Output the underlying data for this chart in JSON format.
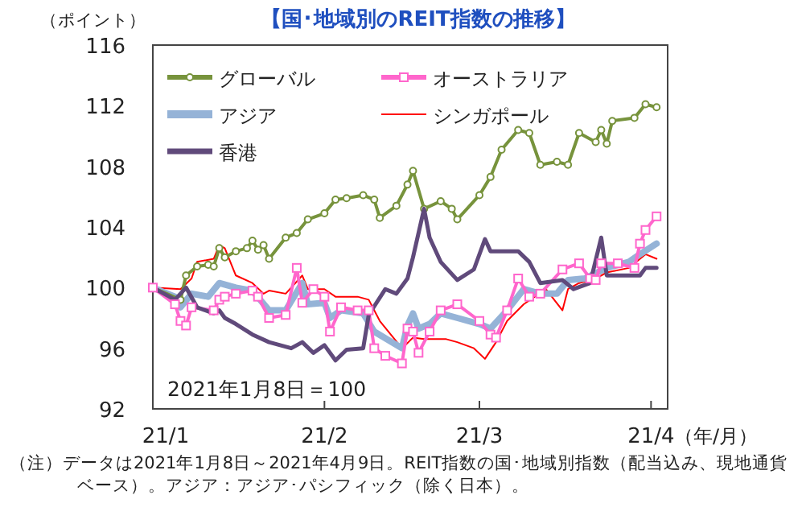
{
  "chart_data": {
    "type": "line",
    "title": "【国･地域別のREIT指数の推移】",
    "ylabel": "（ポイント）",
    "xlabel": "（年/月）",
    "xlim": [
      "2021-01-01",
      "2021-04-04"
    ],
    "xticks": [
      {
        "value": "2021-01-01",
        "label": "21/1"
      },
      {
        "value": "2021-02-01",
        "label": "21/2"
      },
      {
        "value": "2021-03-01",
        "label": "21/3"
      },
      {
        "value": "2021-04-01",
        "label": "21/4"
      }
    ],
    "ylim": [
      92,
      116
    ],
    "yticks": [
      92,
      96,
      100,
      104,
      108,
      112,
      116
    ],
    "grid": false,
    "legend": "top left",
    "line_style": "solid",
    "annotations": [
      "2021年1月8日＝100",
      "（注）データは2021年1月8日～2021年4月9日。REIT指数の国･地域別指数（配当込み、現地通貨ベース）。アジア：アジア･パシフィック（除く日本）。"
    ],
    "series": [
      {
        "name": "グローバル",
        "color": "#77933c",
        "marker": "circle",
        "x": [
          "2021-01-01",
          "2021-01-06",
          "2021-01-07",
          "2021-01-09",
          "2021-01-11",
          "2021-01-12",
          "2021-01-13",
          "2021-01-14",
          "2021-01-16",
          "2021-01-18",
          "2021-01-19",
          "2021-01-20",
          "2021-01-21",
          "2021-01-22",
          "2021-01-25",
          "2021-01-27",
          "2021-01-29",
          "2021-02-01",
          "2021-02-03",
          "2021-02-05",
          "2021-02-08",
          "2021-02-10",
          "2021-02-11",
          "2021-02-14",
          "2021-02-16",
          "2021-02-17",
          "2021-02-19",
          "2021-02-22",
          "2021-02-24",
          "2021-02-25",
          "2021-03-01",
          "2021-03-03",
          "2021-03-05",
          "2021-03-08",
          "2021-03-10",
          "2021-03-12",
          "2021-03-15",
          "2021-03-17",
          "2021-03-19",
          "2021-03-22",
          "2021-03-23",
          "2021-03-24",
          "2021-03-25",
          "2021-03-29",
          "2021-03-31",
          "2021-04-02"
        ],
        "values": [
          100.0,
          99.2,
          100.8,
          101.4,
          101.5,
          101.4,
          102.6,
          102.0,
          102.4,
          102.6,
          103.1,
          102.5,
          102.8,
          101.9,
          103.3,
          103.6,
          104.5,
          104.9,
          105.8,
          105.9,
          106.1,
          105.8,
          104.6,
          105.4,
          106.8,
          107.7,
          105.2,
          105.7,
          105.2,
          104.5,
          106.1,
          107.3,
          109.1,
          110.4,
          110.2,
          108.1,
          108.3,
          108.1,
          110.2,
          109.6,
          110.4,
          109.5,
          111.0,
          111.2,
          112.1,
          111.9
        ]
      },
      {
        "name": "オーストラリア",
        "color": "#ff66cc",
        "marker": "square",
        "x": [
          "2021-01-01",
          "2021-01-05",
          "2021-01-06",
          "2021-01-07",
          "2021-01-08",
          "2021-01-12",
          "2021-01-13",
          "2021-01-14",
          "2021-01-16",
          "2021-01-19",
          "2021-01-20",
          "2021-01-22",
          "2021-01-25",
          "2021-01-27",
          "2021-01-28",
          "2021-01-30",
          "2021-02-01",
          "2021-02-02",
          "2021-02-04",
          "2021-02-07",
          "2021-02-09",
          "2021-02-10",
          "2021-02-12",
          "2021-02-15",
          "2021-02-16",
          "2021-02-17",
          "2021-02-18",
          "2021-02-20",
          "2021-02-22",
          "2021-02-25",
          "2021-03-01",
          "2021-03-03",
          "2021-03-04",
          "2021-03-06",
          "2021-03-08",
          "2021-03-10",
          "2021-03-12",
          "2021-03-16",
          "2021-03-19",
          "2021-03-21",
          "2021-03-22",
          "2021-03-23",
          "2021-03-26",
          "2021-03-29",
          "2021-03-30",
          "2021-03-31",
          "2021-04-02"
        ],
        "values": [
          100.0,
          98.9,
          97.8,
          97.5,
          98.7,
          98.5,
          99.2,
          99.4,
          99.6,
          99.8,
          99.4,
          98.0,
          98.2,
          101.3,
          99.0,
          99.9,
          99.4,
          97.1,
          98.7,
          98.5,
          98.5,
          96.0,
          95.5,
          95.0,
          97.3,
          97.1,
          95.7,
          97.1,
          98.5,
          98.9,
          97.8,
          96.9,
          96.7,
          98.5,
          100.6,
          99.4,
          99.6,
          101.2,
          101.6,
          100.6,
          100.5,
          101.6,
          101.6,
          101.3,
          102.9,
          103.8,
          104.7
        ]
      },
      {
        "name": "アジア",
        "color": "#95b3d7",
        "marker": "none",
        "x": [
          "2021-01-01",
          "2021-01-05",
          "2021-01-06",
          "2021-01-08",
          "2021-01-11",
          "2021-01-13",
          "2021-01-16",
          "2021-01-19",
          "2021-01-22",
          "2021-01-25",
          "2021-01-28",
          "2021-01-29",
          "2021-02-01",
          "2021-02-02",
          "2021-02-04",
          "2021-02-08",
          "2021-02-10",
          "2021-02-15",
          "2021-02-16",
          "2021-02-17",
          "2021-02-18",
          "2021-02-20",
          "2021-02-22",
          "2021-02-25",
          "2021-03-01",
          "2021-03-03",
          "2021-03-06",
          "2021-03-09",
          "2021-03-12",
          "2021-03-15",
          "2021-03-17",
          "2021-03-20",
          "2021-03-24",
          "2021-03-28",
          "2021-03-30",
          "2021-04-02"
        ],
        "values": [
          100.0,
          99.4,
          98.7,
          99.6,
          99.4,
          100.3,
          100.0,
          99.8,
          98.5,
          98.5,
          100.3,
          98.9,
          99.0,
          98.0,
          98.5,
          98.3,
          97.1,
          96.0,
          97.5,
          98.3,
          97.3,
          97.6,
          98.3,
          98.0,
          97.6,
          97.3,
          98.5,
          99.9,
          99.6,
          99.6,
          100.5,
          100.6,
          101.3,
          101.7,
          102.2,
          102.9
        ]
      },
      {
        "name": "シンガポール",
        "color": "#ff0000",
        "marker": "none",
        "x": [
          "2021-01-01",
          "2021-01-06",
          "2021-01-08",
          "2021-01-09",
          "2021-01-12",
          "2021-01-13",
          "2021-01-14",
          "2021-01-16",
          "2021-01-19",
          "2021-01-21",
          "2021-01-22",
          "2021-01-25",
          "2021-01-28",
          "2021-01-29",
          "2021-02-01",
          "2021-02-03",
          "2021-02-07",
          "2021-02-09",
          "2021-02-11",
          "2021-02-15",
          "2021-02-17",
          "2021-02-19",
          "2021-02-23",
          "2021-02-25",
          "2021-02-28",
          "2021-03-02",
          "2021-03-04",
          "2021-03-06",
          "2021-03-09",
          "2021-03-11",
          "2021-03-13",
          "2021-03-16",
          "2021-03-17",
          "2021-03-19",
          "2021-03-22",
          "2021-03-24",
          "2021-03-28",
          "2021-03-31",
          "2021-04-02"
        ],
        "values": [
          100.0,
          99.9,
          100.6,
          101.7,
          101.9,
          102.8,
          102.6,
          100.8,
          100.3,
          99.6,
          99.8,
          99.6,
          100.8,
          99.9,
          99.9,
          99.4,
          99.4,
          99.2,
          97.8,
          96.0,
          96.7,
          96.6,
          96.6,
          96.4,
          96.0,
          95.3,
          96.4,
          97.8,
          98.9,
          99.4,
          99.9,
          98.5,
          99.9,
          100.3,
          100.6,
          101.0,
          101.3,
          102.2,
          101.9
        ]
      },
      {
        "name": "香港",
        "color": "#604a7b",
        "marker": "none",
        "x": [
          "2021-01-01",
          "2021-01-05",
          "2021-01-07",
          "2021-01-09",
          "2021-01-12",
          "2021-01-13",
          "2021-01-14",
          "2021-01-16",
          "2021-01-19",
          "2021-01-22",
          "2021-01-26",
          "2021-01-28",
          "2021-01-30",
          "2021-02-01",
          "2021-02-03",
          "2021-02-05",
          "2021-02-08",
          "2021-02-09",
          "2021-02-12",
          "2021-02-14",
          "2021-02-16",
          "2021-02-17",
          "2021-02-19",
          "2021-02-20",
          "2021-02-22",
          "2021-02-25",
          "2021-02-28",
          "2021-03-02",
          "2021-03-03",
          "2021-03-08",
          "2021-03-10",
          "2021-03-12",
          "2021-03-16",
          "2021-03-18",
          "2021-03-21",
          "2021-03-23",
          "2021-03-24",
          "2021-03-30",
          "2021-03-31",
          "2021-04-02"
        ],
        "values": [
          100.0,
          99.2,
          100.0,
          98.7,
          98.3,
          98.5,
          98.0,
          97.6,
          96.9,
          96.4,
          96.0,
          96.4,
          95.7,
          96.2,
          95.2,
          95.9,
          96.0,
          98.2,
          99.9,
          99.6,
          100.6,
          102.0,
          105.2,
          103.3,
          101.7,
          100.5,
          101.2,
          103.2,
          102.4,
          102.4,
          101.7,
          100.3,
          100.5,
          99.9,
          100.3,
          103.3,
          100.8,
          100.8,
          101.3,
          101.3
        ]
      }
    ]
  }
}
